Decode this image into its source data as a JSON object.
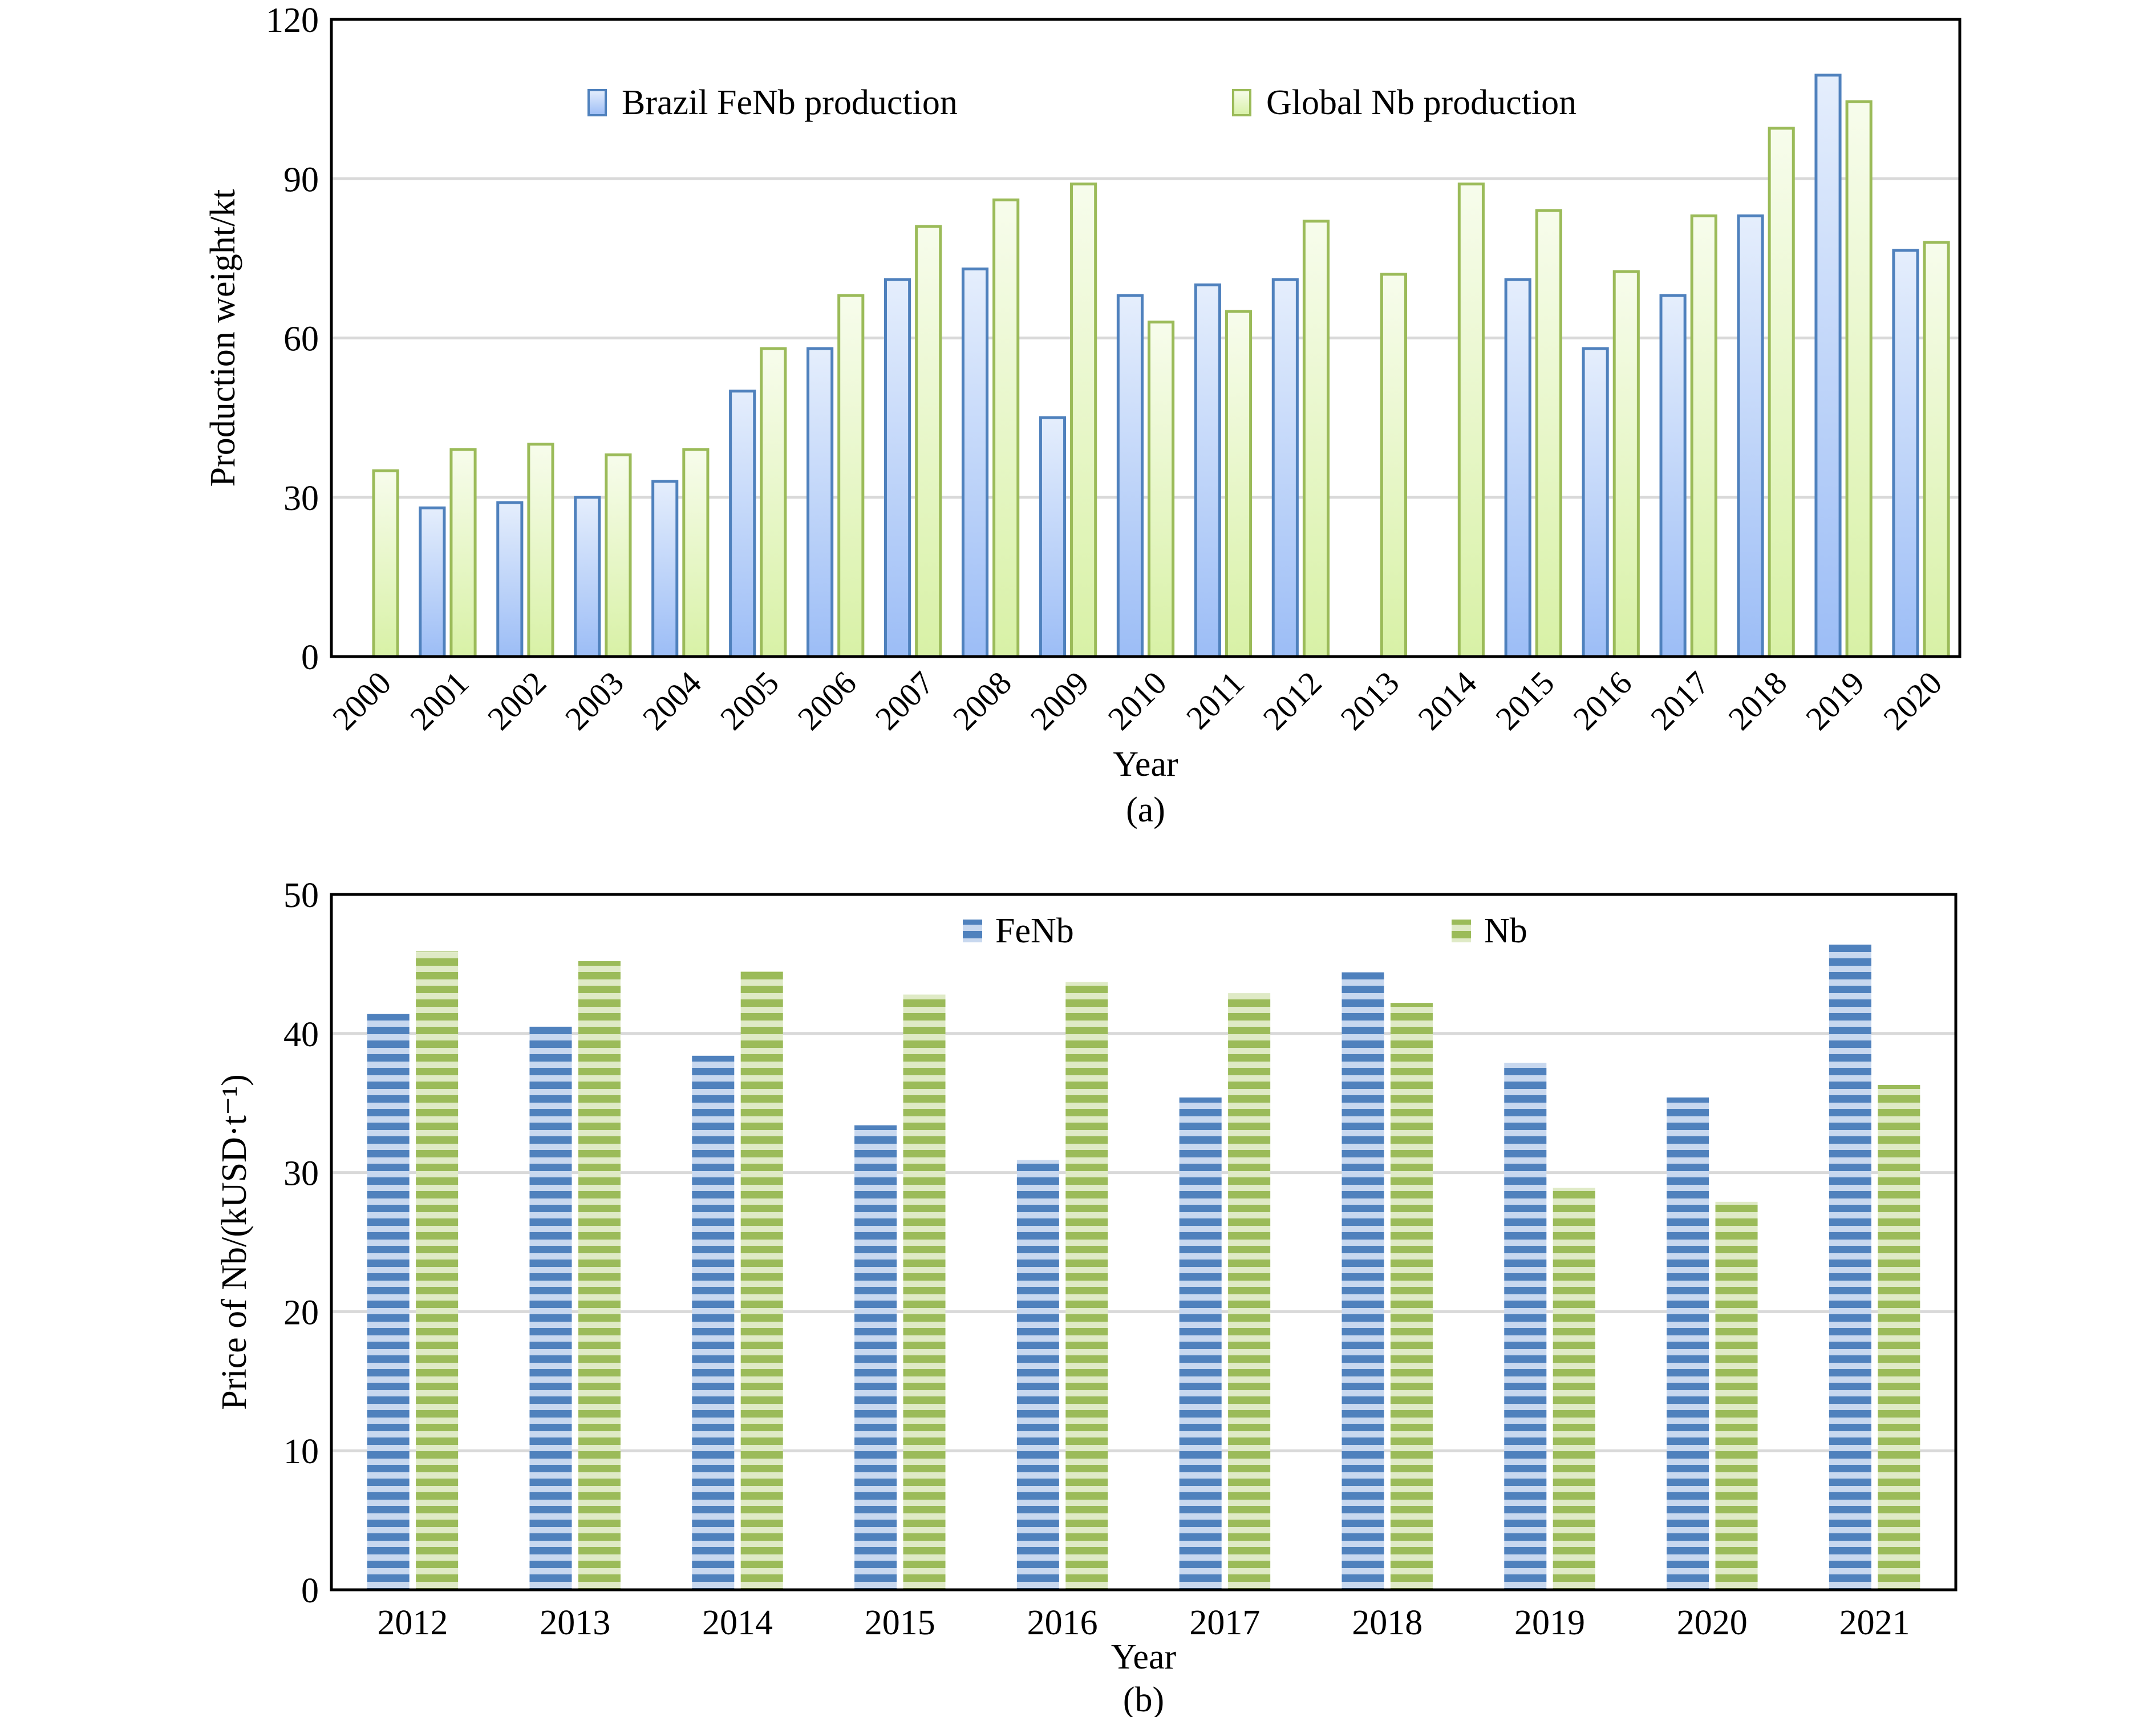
{
  "chart_data": [
    {
      "type": "bar",
      "panel_label": "(a)",
      "title": "",
      "xlabel": "Year",
      "ylabel": "Production weight/kt",
      "ylim": [
        0,
        120
      ],
      "yticks": [
        0,
        30,
        60,
        90,
        120
      ],
      "grid": true,
      "legend_position": "top",
      "categories": [
        "2000",
        "2001",
        "2002",
        "2003",
        "2004",
        "2005",
        "2006",
        "2007",
        "2008",
        "2009",
        "2010",
        "2011",
        "2012",
        "2013",
        "2014",
        "2015",
        "2016",
        "2017",
        "2018",
        "2019",
        "2020"
      ],
      "series": [
        {
          "name": "Brazil FeNb production",
          "color": "#4f81bd",
          "fill_top": "#e3ecfb",
          "fill_bottom": "#9dbef7",
          "values": [
            null,
            28,
            29,
            30,
            33,
            50,
            58,
            71,
            73,
            45,
            68,
            70,
            71,
            null,
            null,
            71,
            58,
            68,
            83,
            109.5,
            76.5
          ]
        },
        {
          "name": "Global Nb production",
          "color": "#9bbb59",
          "fill_top": "#f6fbea",
          "fill_bottom": "#d9f2a8",
          "values": [
            35,
            39,
            40,
            38,
            39,
            58,
            68,
            81,
            86,
            89,
            63,
            65,
            82,
            72,
            89,
            84,
            72.5,
            83,
            99.5,
            104.5,
            78
          ]
        }
      ]
    },
    {
      "type": "bar",
      "panel_label": "(b)",
      "title": "",
      "xlabel": "Year",
      "ylabel": "Price of  Nb/(kUSD·t⁻¹)",
      "ylim": [
        0,
        50
      ],
      "yticks": [
        0,
        10,
        20,
        30,
        40,
        50
      ],
      "grid": true,
      "legend_position": "top",
      "categories": [
        "2012",
        "2013",
        "2014",
        "2015",
        "2016",
        "2017",
        "2018",
        "2019",
        "2020",
        "2021"
      ],
      "series": [
        {
          "name": "FeNb",
          "color": "#4f81bd",
          "stripe": "#c5d6ee",
          "values": [
            41.4,
            40.5,
            38.4,
            33.4,
            30.9,
            35.4,
            44.4,
            37.9,
            35.4,
            46.4
          ]
        },
        {
          "name": "Nb",
          "color": "#9bbb59",
          "stripe": "#dde9c4",
          "values": [
            45.9,
            45.2,
            44.5,
            42.8,
            43.7,
            42.9,
            42.2,
            28.9,
            27.9,
            36.3
          ]
        }
      ]
    }
  ]
}
